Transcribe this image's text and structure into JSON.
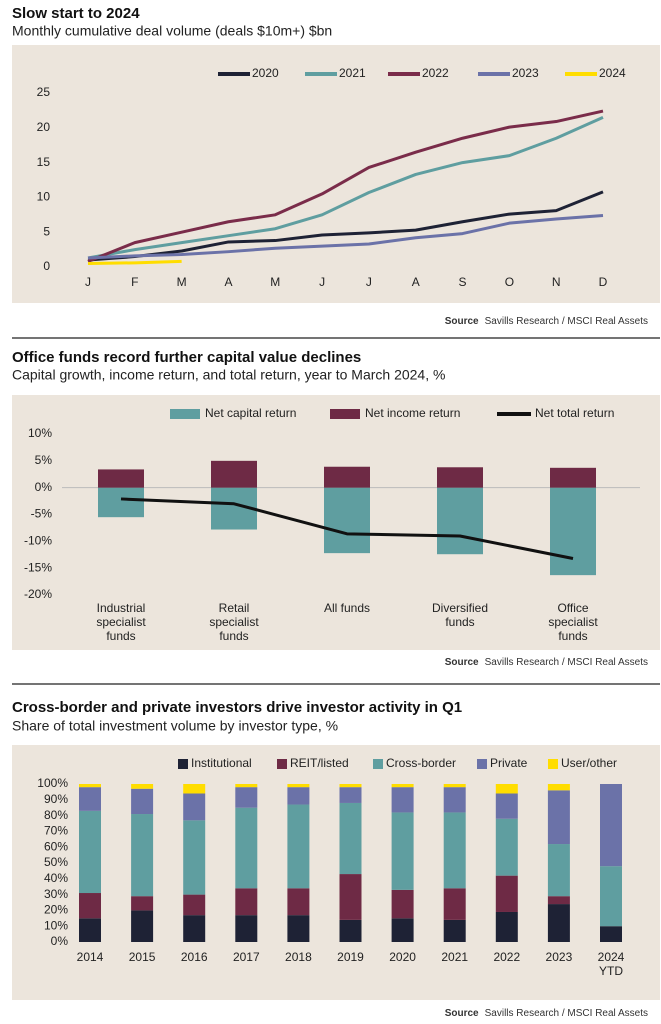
{
  "chart_data": [
    {
      "type": "line",
      "title": "Slow start to 2024",
      "subtitle": "Monthly cumulative deal volume (deals $10m+) $bn",
      "source_label": "Source",
      "source": "Savills Research / MSCI Real Assets",
      "categories": [
        "J",
        "F",
        "M",
        "A",
        "M",
        "J",
        "J",
        "A",
        "S",
        "O",
        "N",
        "D"
      ],
      "ylim": [
        0,
        25
      ],
      "yticks": [
        0,
        5,
        10,
        15,
        20,
        25
      ],
      "grid": false,
      "series": [
        {
          "name": "2020",
          "color": "#1e2235",
          "values": [
            1.0,
            1.5,
            2.3,
            3.6,
            3.8,
            4.6,
            4.9,
            5.3,
            6.5,
            7.6,
            8.1,
            10.8
          ]
        },
        {
          "name": "2021",
          "color": "#5f9ea0",
          "values": [
            1.3,
            2.5,
            3.5,
            4.5,
            5.5,
            7.5,
            10.7,
            13.3,
            15.0,
            16.0,
            18.5,
            21.5
          ]
        },
        {
          "name": "2022",
          "color": "#7a2c4a",
          "values": [
            0.8,
            3.5,
            5.0,
            6.5,
            7.5,
            10.5,
            14.3,
            16.5,
            18.5,
            20.1,
            20.9,
            22.4
          ]
        },
        {
          "name": "2023",
          "color": "#6b72a8",
          "values": [
            1.3,
            1.6,
            1.8,
            2.2,
            2.7,
            3.0,
            3.3,
            4.2,
            4.8,
            6.3,
            6.9,
            7.4
          ]
        },
        {
          "name": "2024",
          "color": "#ffdd00",
          "values": [
            0.5,
            0.6,
            0.8,
            null,
            null,
            null,
            null,
            null,
            null,
            null,
            null,
            null
          ]
        }
      ]
    },
    {
      "type": "bar",
      "stacked": true,
      "title": "Office funds record further capital value declines",
      "subtitle": "Capital growth, income return, and total return, year to March 2024, %",
      "source_label": "Source",
      "source": "Savills Research / MSCI Real Assets",
      "categories": [
        [
          "Industrial",
          "specialist",
          "funds"
        ],
        [
          "Retail",
          "specialist",
          "funds"
        ],
        [
          "All funds"
        ],
        [
          "Diversified",
          "funds"
        ],
        [
          "Office",
          "specialist",
          "funds"
        ]
      ],
      "ylim": [
        -20,
        10
      ],
      "yticks": [
        {
          "value": -20,
          "label": "-20%"
        },
        {
          "value": -15,
          "label": "-15%"
        },
        {
          "value": -10,
          "label": "-10%"
        },
        {
          "value": -5,
          "label": "-5%"
        },
        {
          "value": 0,
          "label": "0%"
        },
        {
          "value": 5,
          "label": "5%"
        },
        {
          "value": 10,
          "label": "10%"
        }
      ],
      "grid": false,
      "series": [
        {
          "name": "Net capital return",
          "color": "#5f9ea0",
          "values": [
            -5.5,
            -7.8,
            -12.2,
            -12.4,
            -16.3
          ]
        },
        {
          "name": "Net income return",
          "color": "#6e2a45",
          "values": [
            3.4,
            5.0,
            3.9,
            3.8,
            3.7
          ]
        },
        {
          "name": "Net total return",
          "color": "#111111",
          "type": "line",
          "values": [
            -2.1,
            -3.0,
            -8.6,
            -9.0,
            -13.2
          ]
        }
      ]
    },
    {
      "type": "bar",
      "stacked": true,
      "title": "Cross-border and private investors drive investor activity in Q1",
      "subtitle": "Share of total investment volume by investor type, %",
      "source_label": "Source",
      "source": "Savills Research / MSCI Real Assets",
      "categories": [
        [
          "2014"
        ],
        [
          "2015"
        ],
        [
          "2016"
        ],
        [
          "2017"
        ],
        [
          "2018"
        ],
        [
          "2019"
        ],
        [
          "2020"
        ],
        [
          "2021"
        ],
        [
          "2022"
        ],
        [
          "2023"
        ],
        [
          "2024",
          "YTD"
        ]
      ],
      "ylim": [
        0,
        100
      ],
      "yticks": [
        {
          "value": 0,
          "label": "0%"
        },
        {
          "value": 10,
          "label": "10%"
        },
        {
          "value": 20,
          "label": "20%"
        },
        {
          "value": 30,
          "label": "30%"
        },
        {
          "value": 40,
          "label": "40%"
        },
        {
          "value": 50,
          "label": "50%"
        },
        {
          "value": 60,
          "label": "60%"
        },
        {
          "value": 70,
          "label": "70%"
        },
        {
          "value": 80,
          "label": "80%"
        },
        {
          "value": 90,
          "label": "90%"
        },
        {
          "value": 100,
          "label": "100%"
        }
      ],
      "grid": false,
      "series": [
        {
          "name": "Institutional",
          "color": "#1e2235",
          "values": [
            15,
            20,
            17,
            17,
            17,
            14,
            15,
            14,
            19,
            24,
            10
          ]
        },
        {
          "name": "REIT/listed",
          "color": "#6e2a45",
          "values": [
            16,
            9,
            13,
            17,
            17,
            29,
            18,
            20,
            23,
            5,
            0
          ]
        },
        {
          "name": "Cross-border",
          "color": "#5f9ea0",
          "values": [
            52,
            52,
            47,
            51,
            53,
            45,
            49,
            48,
            36,
            33,
            38
          ]
        },
        {
          "name": "Private",
          "color": "#6b72a8",
          "values": [
            15,
            16,
            17,
            13,
            11,
            10,
            16,
            16,
            16,
            34,
            52
          ]
        },
        {
          "name": "User/other",
          "color": "#ffdd00",
          "values": [
            2,
            3,
            6,
            2,
            2,
            2,
            2,
            2,
            6,
            4,
            0
          ]
        }
      ]
    }
  ]
}
